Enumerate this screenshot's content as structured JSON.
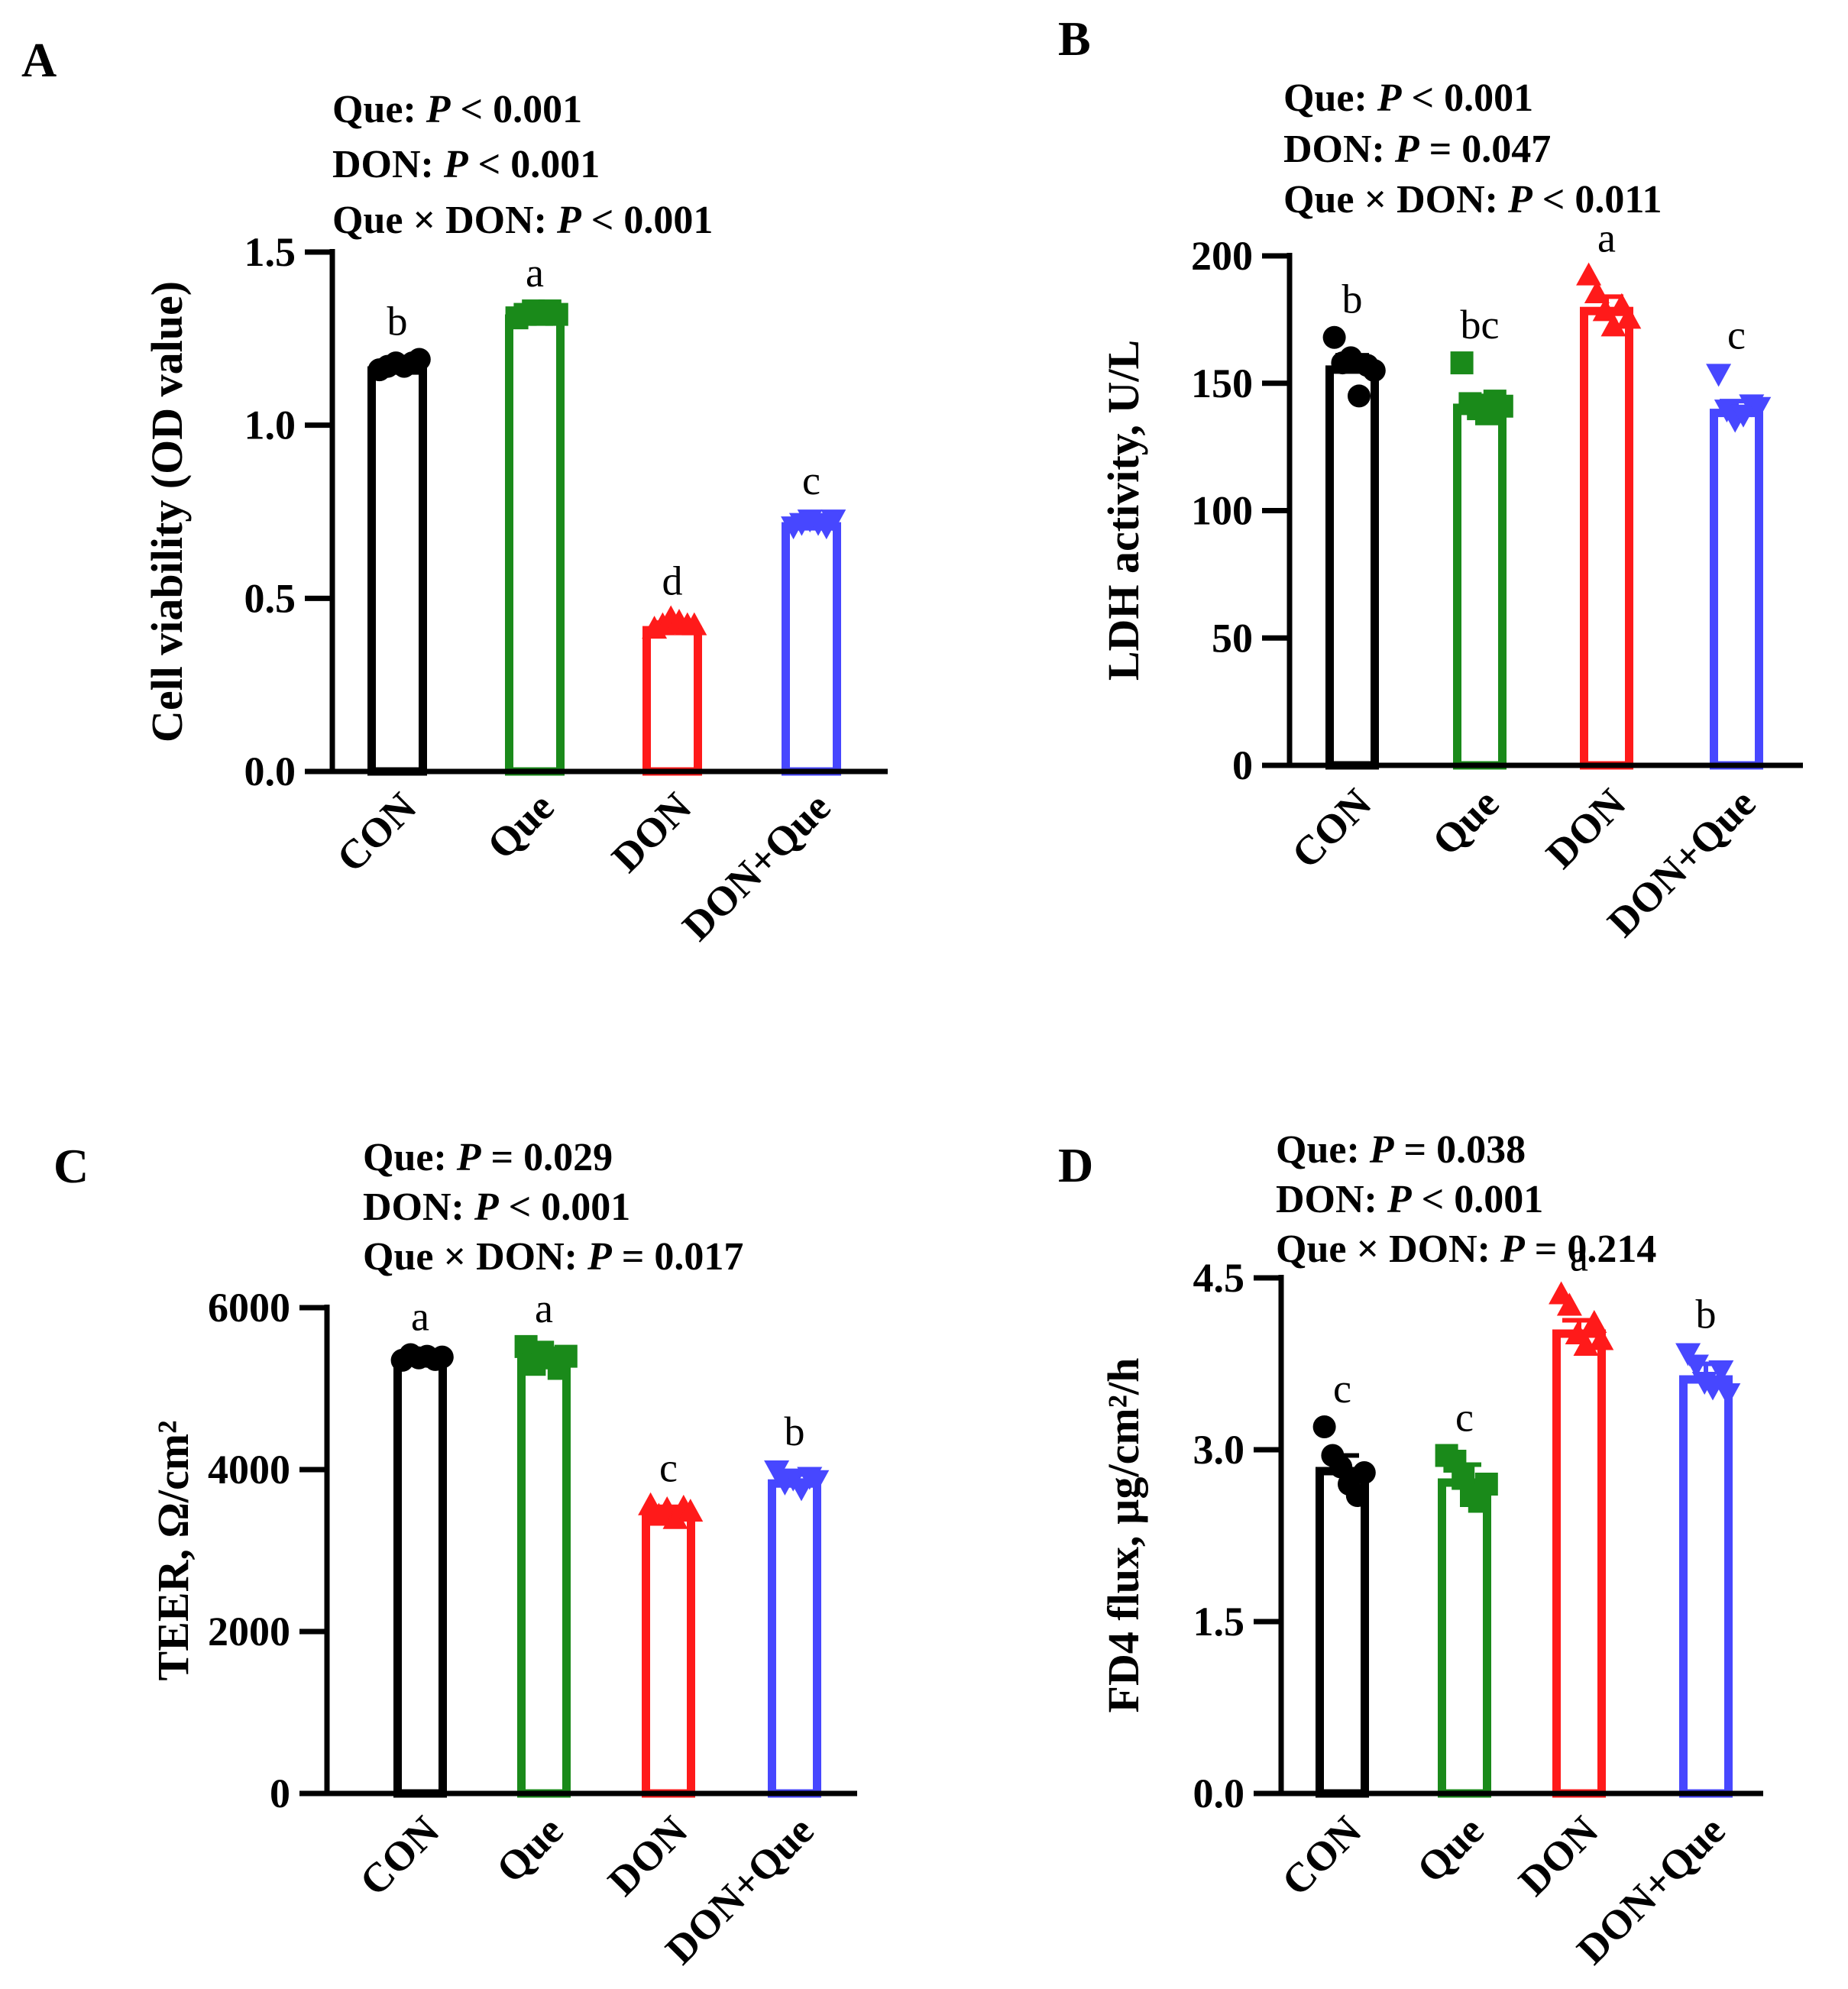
{
  "figure": {
    "title": ""
  },
  "chart_data": [
    {
      "type": "bar",
      "panel": "A",
      "title": "",
      "stats": [
        {
          "term": "Que: ",
          "p_symbol": "P",
          "op": " < ",
          "value": "0.001"
        },
        {
          "term": "DON:  ",
          "p_symbol": "P",
          "op": " < ",
          "value": "0.001"
        },
        {
          "term": "Que × DON: ",
          "p_symbol": "P",
          "op": " < ",
          "value": "0.001"
        }
      ],
      "ylabel": "Cell viability (OD value)",
      "xlabel": "",
      "ylim": [
        0,
        1.5
      ],
      "yticks": [
        0,
        0.5,
        1.0,
        1.5
      ],
      "ytick_labels": [
        "0.0",
        "0.5",
        "1.0",
        "1.5"
      ],
      "categories": [
        "CON",
        "Que",
        "DON",
        "DON+Que"
      ],
      "values": [
        1.17,
        1.32,
        0.42,
        0.72
      ],
      "errors": [
        0.01,
        0.01,
        0.01,
        0.01
      ],
      "letters": [
        "b",
        "a",
        "d",
        "c"
      ],
      "points": [
        [
          1.16,
          1.17,
          1.18,
          1.17,
          1.18,
          1.19
        ],
        [
          1.31,
          1.32,
          1.33,
          1.32,
          1.33,
          1.32
        ],
        [
          0.41,
          0.42,
          0.44,
          0.43,
          0.42,
          0.42
        ],
        [
          0.71,
          0.72,
          0.73,
          0.72,
          0.71,
          0.73
        ]
      ],
      "colors": [
        "#000000",
        "#1a8a1a",
        "#ff1a1a",
        "#4747ff"
      ],
      "markers": [
        "circle",
        "square",
        "triangle-up",
        "triangle-down"
      ]
    },
    {
      "type": "bar",
      "panel": "B",
      "title": "",
      "stats": [
        {
          "term": "Que: ",
          "p_symbol": "P",
          "op": "  < ",
          "value": "0.001"
        },
        {
          "term": "DON:  ",
          "p_symbol": "P",
          "op": "  = ",
          "value": "0.047"
        },
        {
          "term": "Que × DON: ",
          "p_symbol": "P",
          "op": "  < ",
          "value": "0.011"
        }
      ],
      "ylabel": "LDH activity, U/L",
      "xlabel": "",
      "ylim": [
        0,
        200
      ],
      "yticks": [
        0,
        50,
        100,
        150,
        200
      ],
      "ytick_labels": [
        "0",
        "50",
        "100",
        "150",
        "200"
      ],
      "categories": [
        "CON",
        "Que",
        "DON",
        "DON+Que"
      ],
      "values": [
        157,
        142,
        180,
        140
      ],
      "errors": [
        4,
        3,
        4,
        3
      ],
      "letters": [
        "b",
        "bc",
        "a",
        "c"
      ],
      "points": [
        [
          168,
          158,
          160,
          145,
          157,
          155
        ],
        [
          158,
          142,
          140,
          138,
          143,
          141
        ],
        [
          192,
          185,
          178,
          172,
          180,
          175
        ],
        [
          154,
          140,
          136,
          138,
          142,
          141
        ]
      ],
      "colors": [
        "#000000",
        "#1a8a1a",
        "#ff1a1a",
        "#4747ff"
      ],
      "markers": [
        "circle",
        "square",
        "triangle-up",
        "triangle-down"
      ]
    },
    {
      "type": "bar",
      "panel": "C",
      "title": "",
      "stats": [
        {
          "term": "Que: ",
          "p_symbol": "P",
          "op": " = ",
          "value": "0.029"
        },
        {
          "term": "DON:  ",
          "p_symbol": "P",
          "op": " < ",
          "value": "0.001"
        },
        {
          "term": "Que × DON: ",
          "p_symbol": "P",
          "op": " = ",
          "value": "0.017"
        }
      ],
      "ylabel": "TEER, Ω/cm²",
      "xlabel": "",
      "ylim": [
        0,
        6000
      ],
      "yticks": [
        0,
        2000,
        4000,
        6000
      ],
      "ytick_labels": [
        "0",
        "2000",
        "4000",
        "6000"
      ],
      "categories": [
        "CON",
        "Que",
        "DON",
        "DON+Que"
      ],
      "values": [
        5380,
        5390,
        3480,
        3880
      ],
      "errors": [
        30,
        80,
        60,
        60
      ],
      "letters": [
        "a",
        "a",
        "c",
        "b"
      ],
      "points": [
        [
          5350,
          5420,
          5380,
          5400,
          5360,
          5390
        ],
        [
          5520,
          5300,
          5450,
          5380,
          5250,
          5400
        ],
        [
          3550,
          3420,
          3500,
          3380,
          3520,
          3470
        ],
        [
          4000,
          3850,
          3900,
          3780,
          3920,
          3880
        ]
      ],
      "colors": [
        "#000000",
        "#1a8a1a",
        "#ff1a1a",
        "#4747ff"
      ],
      "markers": [
        "circle",
        "square",
        "triangle-up",
        "triangle-down"
      ]
    },
    {
      "type": "bar",
      "panel": "D",
      "title": "",
      "stats": [
        {
          "term": "Que: ",
          "p_symbol": "P",
          "op": " = ",
          "value": "0.038"
        },
        {
          "term": "DON:  ",
          "p_symbol": "P",
          "op": " < ",
          "value": "0.001"
        },
        {
          "term": "Que × DON: ",
          "p_symbol": "P",
          "op": " = ",
          "value": "0.214"
        }
      ],
      "ylabel": "FD4 flux, µg/cm²/h",
      "xlabel": "",
      "ylim": [
        0,
        4.5
      ],
      "yticks": [
        0,
        1.5,
        3.0,
        4.5
      ],
      "ytick_labels": [
        "0.0",
        "1.5",
        "3.0",
        "4.5"
      ],
      "categories": [
        "CON",
        "Que",
        "DON",
        "DON+Que"
      ],
      "values": [
        2.85,
        2.75,
        4.05,
        3.65
      ],
      "errors": [
        0.1,
        0.12,
        0.08,
        0.1
      ],
      "letters": [
        "c",
        "c",
        "a",
        "b"
      ],
      "points": [
        [
          3.2,
          2.95,
          2.85,
          2.7,
          2.6,
          2.8
        ],
        [
          2.95,
          2.9,
          2.75,
          2.6,
          2.55,
          2.7
        ],
        [
          4.35,
          4.25,
          4.0,
          3.9,
          4.1,
          3.95
        ],
        [
          3.85,
          3.75,
          3.6,
          3.55,
          3.7,
          3.5
        ]
      ],
      "colors": [
        "#000000",
        "#1a8a1a",
        "#ff1a1a",
        "#4747ff"
      ],
      "markers": [
        "circle",
        "square",
        "triangle-up",
        "triangle-down"
      ]
    }
  ]
}
